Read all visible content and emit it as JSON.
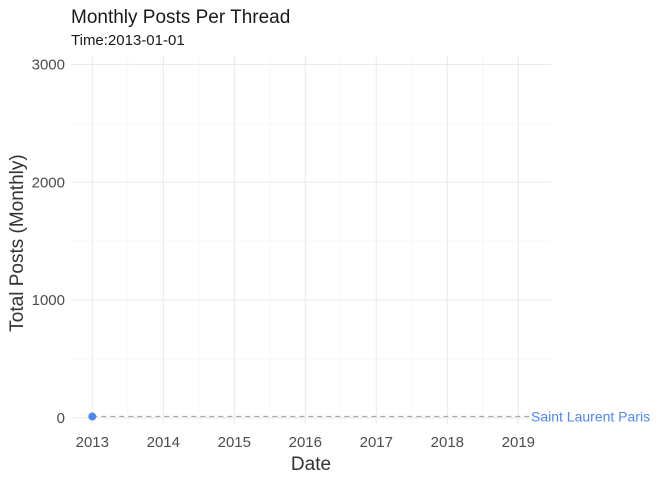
{
  "chart_data": {
    "type": "line",
    "title": "Monthly Posts Per Thread",
    "subtitle": "Time:2013-01-01",
    "xlabel": "Date",
    "ylabel": "Total Posts (Monthly)",
    "x_ticks": [
      "2013",
      "2014",
      "2015",
      "2016",
      "2017",
      "2018",
      "2019"
    ],
    "xlim": [
      2012.7,
      2019.46
    ],
    "y_ticks": [
      0,
      1000,
      2000,
      3000
    ],
    "ylim": [
      -60,
      3080
    ],
    "grid": true,
    "series": [
      {
        "name": "Saint Laurent Paris",
        "color": "#4f86f7",
        "points": [
          {
            "x": 2013.0,
            "y": 12
          }
        ],
        "reference_line_y": 12
      }
    ]
  }
}
